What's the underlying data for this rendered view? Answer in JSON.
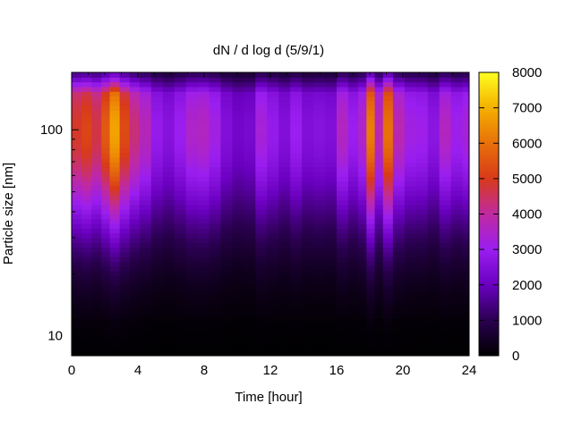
{
  "chart_data": {
    "type": "heatmap",
    "title": "dN / d log d (5/9/1)",
    "xlabel": "Time [hour]",
    "ylabel": "Particle size [nm]",
    "x_ticks": [
      0,
      4,
      8,
      12,
      16,
      20,
      24
    ],
    "xlim": [
      0,
      24
    ],
    "y_scale": "log",
    "y_ticks": [
      10,
      100
    ],
    "ylim": [
      8,
      190
    ],
    "colorbar": {
      "ticks": [
        0,
        1000,
        2000,
        3000,
        4000,
        5000,
        6000,
        7000,
        8000
      ],
      "range": [
        0,
        8000
      ],
      "colormap": [
        "#000000",
        "#2a0050",
        "#6a00c0",
        "#9a1ef0",
        "#c02aa0",
        "#d83a1a",
        "#e8700a",
        "#f4b000",
        "#ffff20"
      ]
    },
    "times_hour": [
      0,
      0.6,
      1.2,
      1.8,
      2.3,
      2.9,
      3.5,
      4.1,
      4.8,
      5.5,
      6.2,
      6.9,
      7.6,
      8.3,
      9.0,
      9.7,
      10.4,
      11.1,
      11.8,
      12.5,
      13.2,
      13.9,
      14.6,
      15.3,
      16.0,
      16.7,
      17.3,
      17.8,
      18.3,
      18.8,
      19.4,
      20.1,
      20.8,
      21.5,
      22.2,
      22.9,
      23.6
    ],
    "peak_size_nm": 100,
    "peak_dN_dlogd": [
      4900,
      5200,
      4700,
      5600,
      6800,
      5300,
      4300,
      3700,
      2900,
      2600,
      3000,
      3500,
      3600,
      3200,
      2500,
      2200,
      2300,
      3300,
      2900,
      2500,
      3000,
      2500,
      2600,
      2500,
      3600,
      3000,
      3500,
      6200,
      3800,
      6000,
      3800,
      3200,
      3100,
      2700,
      3600,
      3100,
      3300
    ]
  }
}
